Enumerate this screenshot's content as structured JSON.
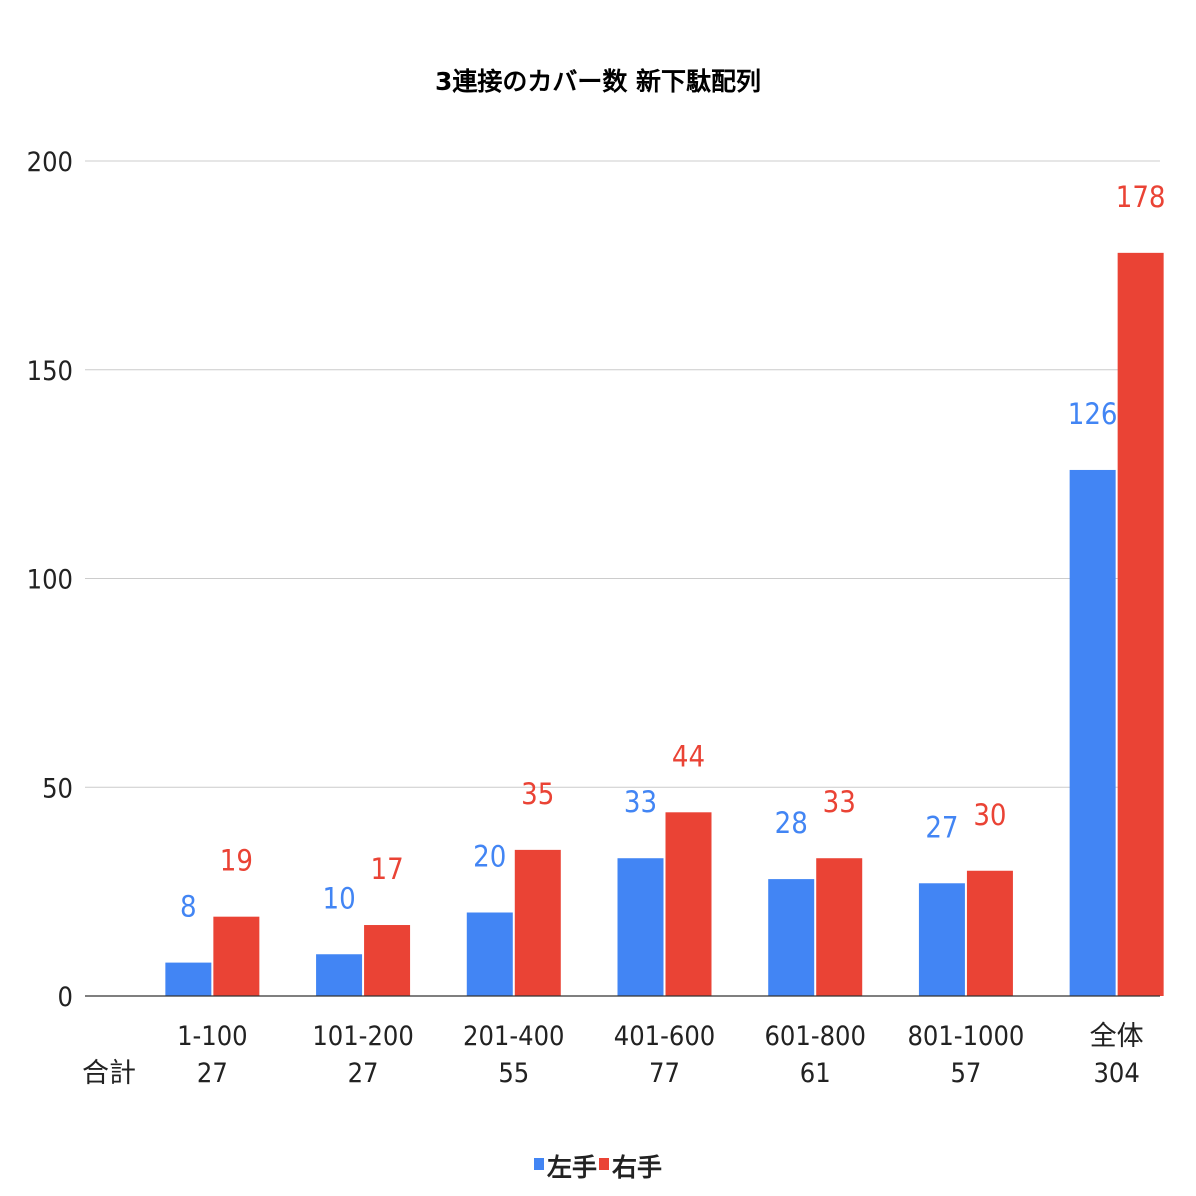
{
  "chart_data": {
    "type": "bar",
    "title": "3連接のカバー数 新下駄配列",
    "categories": [
      "1-100",
      "101-200",
      "201-400",
      "401-600",
      "601-800",
      "801-1000",
      "全体"
    ],
    "totals_label": "合計",
    "totals": [
      "27",
      "27",
      "55",
      "77",
      "61",
      "57",
      "304"
    ],
    "series": [
      {
        "name": "左手",
        "color": "#4285f4",
        "values": [
          8,
          10,
          20,
          33,
          28,
          27,
          126
        ]
      },
      {
        "name": "右手",
        "color": "#ea4335",
        "values": [
          19,
          17,
          35,
          44,
          33,
          30,
          178
        ]
      }
    ],
    "ylim": [
      0,
      200
    ],
    "yticks": [
      0,
      50,
      100,
      150,
      200
    ],
    "grid": true,
    "legend_position": "bottom",
    "data_labels": true
  }
}
